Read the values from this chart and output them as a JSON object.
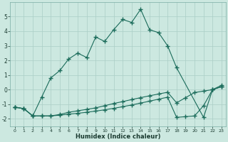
{
  "xlabel": "Humidex (Indice chaleur)",
  "background_color": "#cce8e0",
  "line_color": "#1a6b5a",
  "grid_color": "#aacec6",
  "xlim": [
    -0.5,
    23.5
  ],
  "ylim": [
    -2.5,
    6.0
  ],
  "yticks": [
    -2,
    -1,
    0,
    1,
    2,
    3,
    4,
    5
  ],
  "xticks": [
    0,
    1,
    2,
    3,
    4,
    5,
    6,
    7,
    8,
    9,
    10,
    11,
    12,
    13,
    14,
    15,
    16,
    17,
    18,
    19,
    20,
    21,
    22,
    23
  ],
  "line1_x": [
    0,
    1,
    2,
    3,
    4,
    5,
    6,
    7,
    8,
    9,
    10,
    11,
    12,
    13,
    14,
    15,
    16,
    17,
    18,
    21,
    22,
    23
  ],
  "line1_y": [
    -1.2,
    -1.3,
    -1.8,
    -0.5,
    0.8,
    1.3,
    2.1,
    2.5,
    2.2,
    3.6,
    3.3,
    4.1,
    4.8,
    4.6,
    5.5,
    4.1,
    3.9,
    3.0,
    1.5,
    -1.9,
    0.0,
    0.2
  ],
  "line2_x": [
    0,
    1,
    2,
    3,
    4,
    5,
    6,
    7,
    8,
    9,
    10,
    11,
    12,
    13,
    14,
    15,
    16,
    17,
    18,
    19,
    20,
    21,
    22,
    23
  ],
  "line2_y": [
    -1.2,
    -1.3,
    -1.8,
    -1.8,
    -1.8,
    -1.7,
    -1.55,
    -1.45,
    -1.35,
    -1.25,
    -1.1,
    -0.95,
    -0.82,
    -0.68,
    -0.55,
    -0.42,
    -0.3,
    -0.18,
    -0.9,
    -0.55,
    -0.2,
    -0.1,
    0.0,
    0.2
  ],
  "line3_x": [
    0,
    1,
    2,
    3,
    4,
    5,
    6,
    7,
    8,
    9,
    10,
    11,
    12,
    13,
    14,
    15,
    16,
    17,
    18,
    19,
    20,
    21,
    22,
    23
  ],
  "line3_y": [
    -1.2,
    -1.3,
    -1.8,
    -1.8,
    -1.8,
    -1.75,
    -1.68,
    -1.62,
    -1.55,
    -1.47,
    -1.38,
    -1.28,
    -1.17,
    -1.05,
    -0.92,
    -0.79,
    -0.65,
    -0.52,
    -1.9,
    -1.85,
    -1.8,
    -1.1,
    0.0,
    0.3
  ]
}
